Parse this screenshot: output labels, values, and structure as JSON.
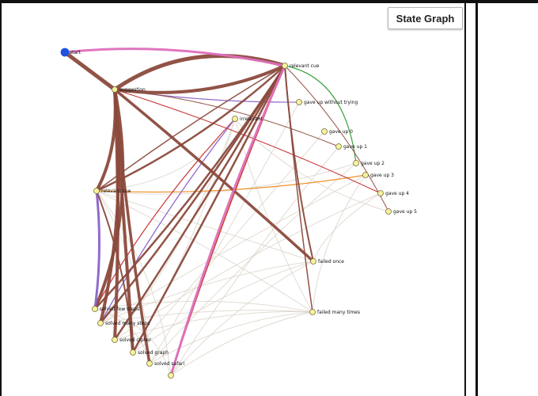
{
  "panel": {
    "button_label": "State Graph"
  },
  "graph": {
    "colors": {
      "brown": "#8b4a3c",
      "pale": "#d9d3c8",
      "pink": "#de6fbc",
      "purple": "#8a62c9",
      "green": "#2f9a2f",
      "orange": "#ef8a1e",
      "red": "#c62a2a",
      "node_fill": "#f5f3a0",
      "start_fill": "#2050e0"
    },
    "nodes": [
      {
        "id": "start",
        "label": "start"
      },
      {
        "id": "suggestion",
        "label": "suggestion"
      },
      {
        "id": "relevant_cue",
        "label": "relevant cue"
      },
      {
        "id": "gave_up_without_trying",
        "label": "gave up without trying"
      },
      {
        "id": "irrelevant",
        "label": "irrelevant"
      },
      {
        "id": "gave_up_0",
        "label": "gave up 0"
      },
      {
        "id": "gave_up_1",
        "label": "gave up 1"
      },
      {
        "id": "gave_up_2",
        "label": "gave up 2"
      },
      {
        "id": "gave_up_3",
        "label": "gave up 3"
      },
      {
        "id": "gave_up_4",
        "label": "gave up 4"
      },
      {
        "id": "gave_up_5",
        "label": "gave up 5"
      },
      {
        "id": "irrelevant_cue",
        "label": "relevant cue"
      },
      {
        "id": "failed_once",
        "label": "failed once"
      },
      {
        "id": "failed_many_times",
        "label": "failed many times"
      },
      {
        "id": "solved_few_steps",
        "label": "solved few steps"
      },
      {
        "id": "solved_many_steps",
        "label": "solved many steps"
      },
      {
        "id": "solved_cipher",
        "label": "solved cipher"
      },
      {
        "id": "solved_graph",
        "label": "solved graph"
      },
      {
        "id": "solved_safari",
        "label": "solved safari"
      },
      {
        "id": "bottom_node",
        "label": ""
      }
    ]
  }
}
